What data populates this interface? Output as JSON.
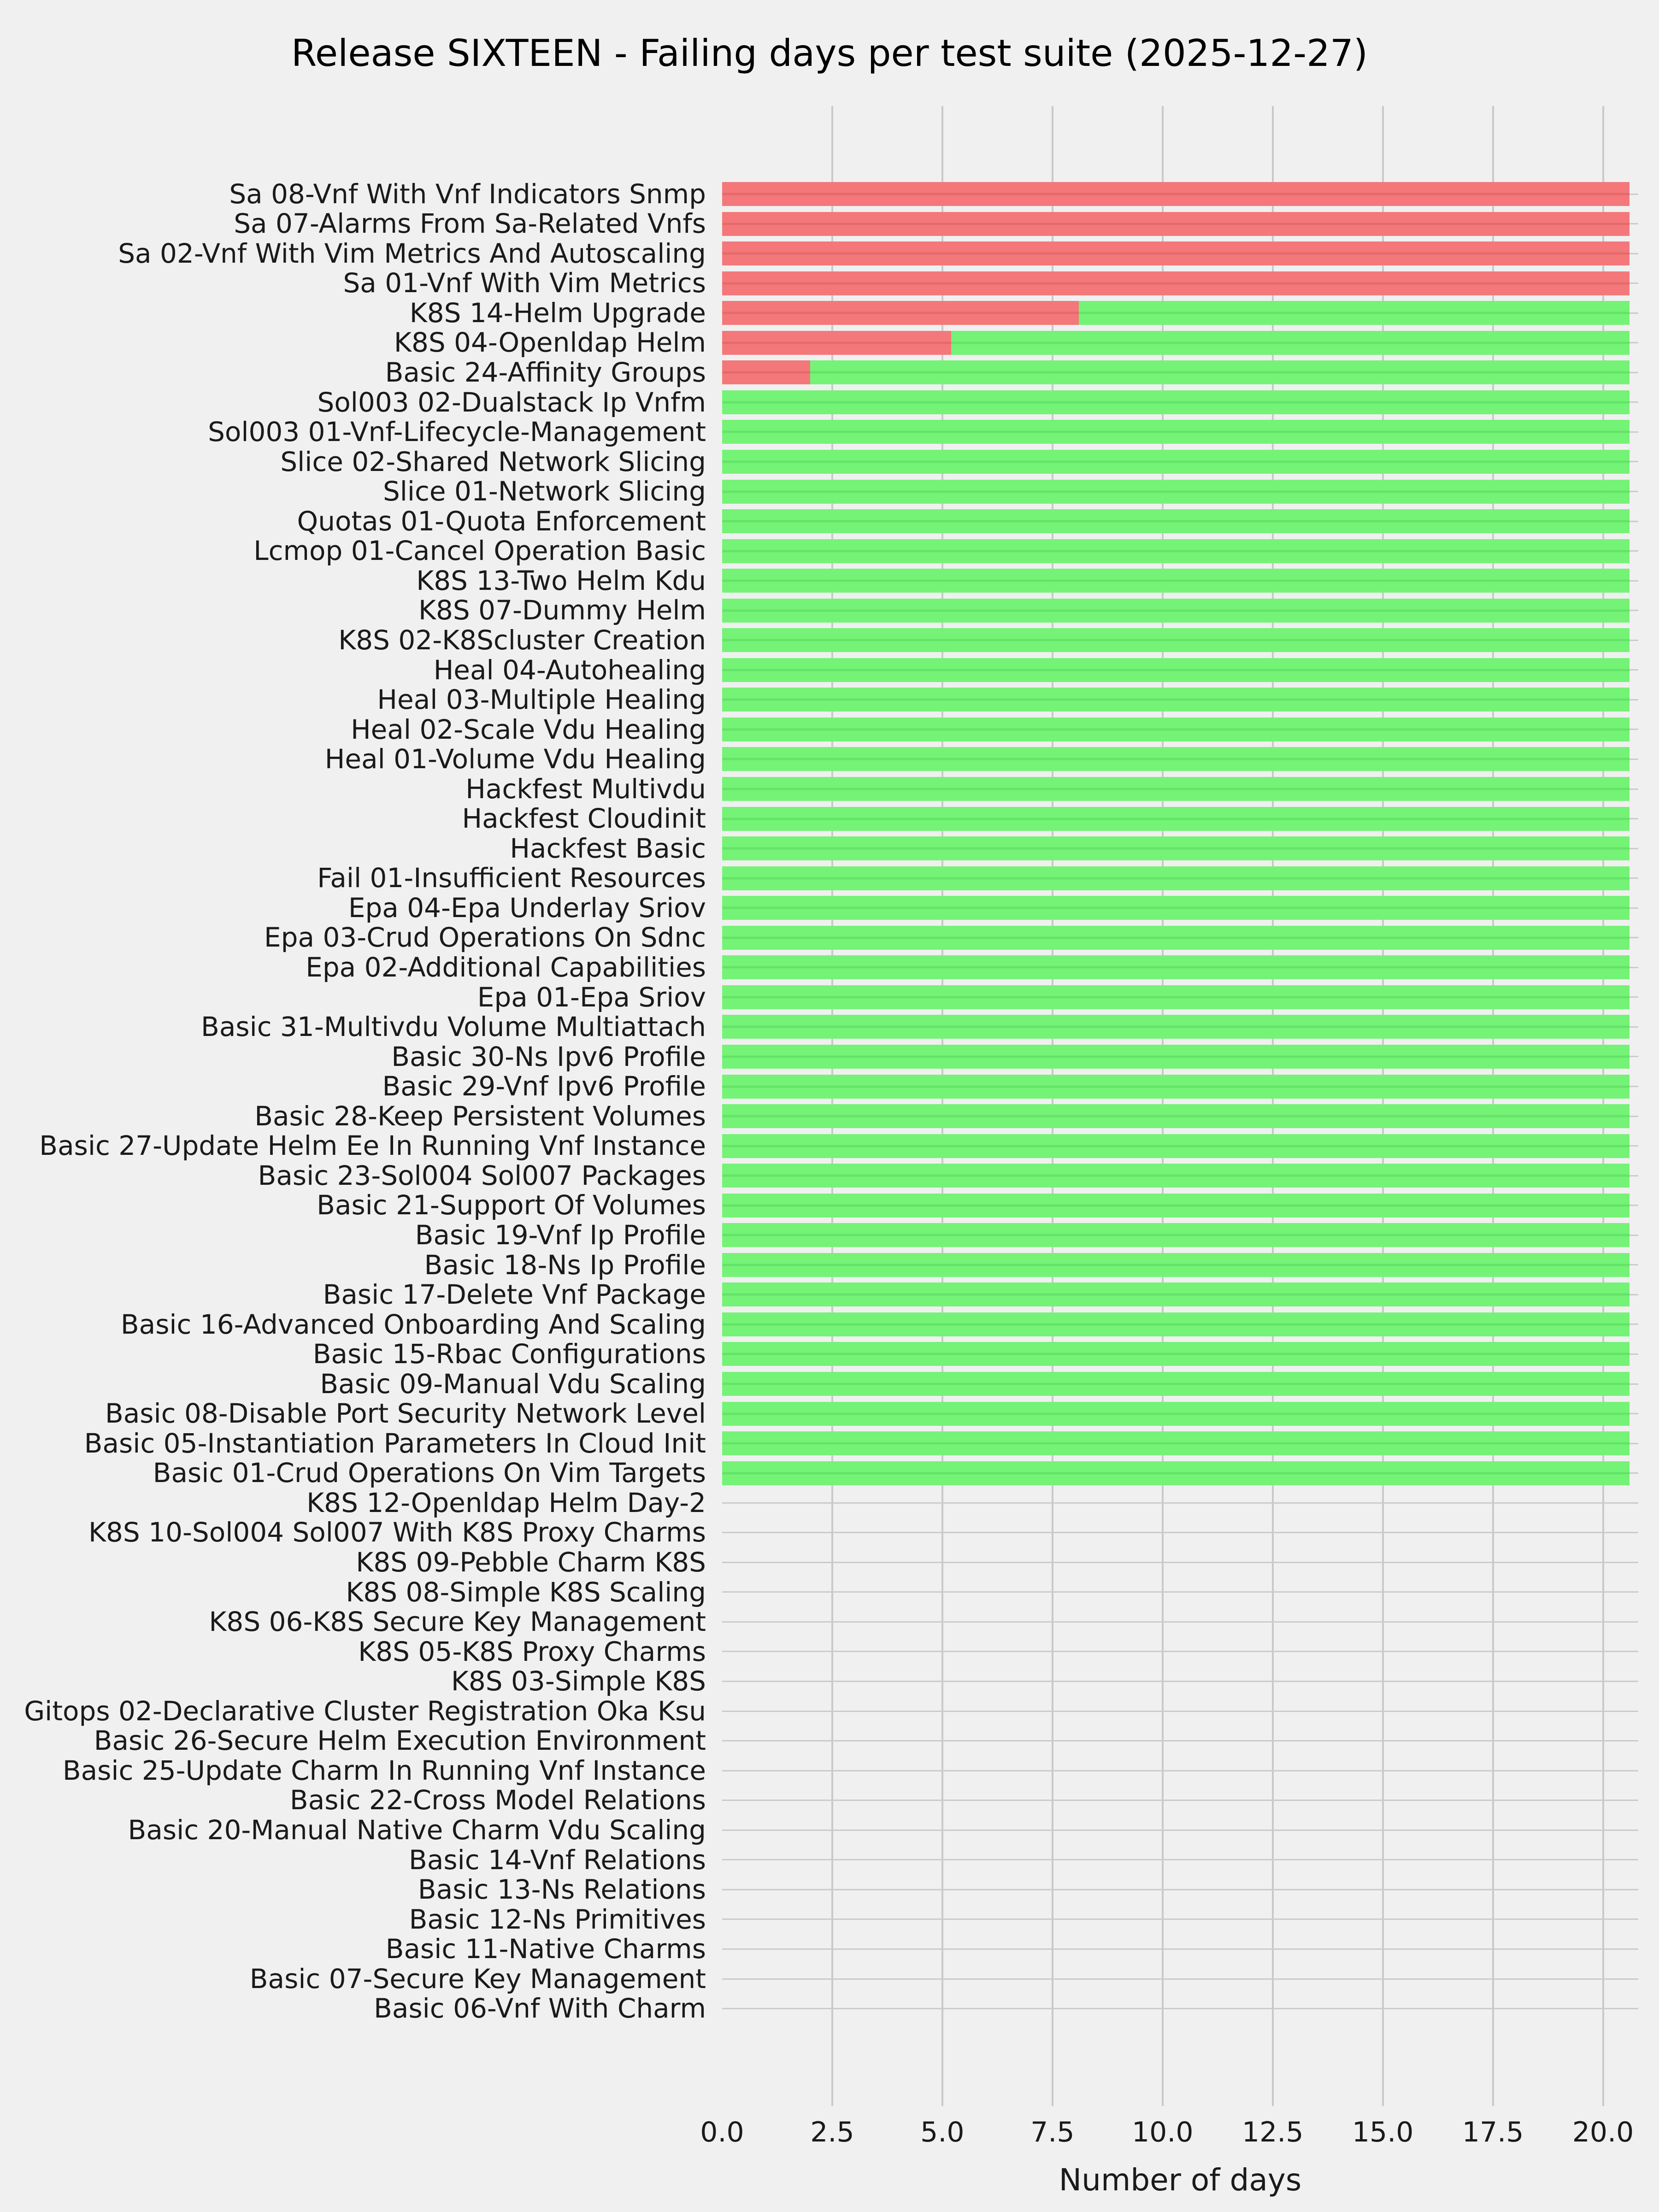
{
  "title": "Release SIXTEEN - Failing days per test suite (2025-12-27)",
  "colors": {
    "failing": "#f4787a",
    "failing_edge": "#e46a6c",
    "passing": "#74f377",
    "passing_edge": "#63e468",
    "background": "#f0f0f0",
    "gridline": "#c9c9c9",
    "text": "#1a1a1a"
  },
  "chart_data": {
    "type": "bar",
    "orientation": "horizontal",
    "stacked": true,
    "title": "Release SIXTEEN - Failing days per test suite (2025-12-27)",
    "xlabel": "Number of days",
    "ylabel": "",
    "xlim": [
      0,
      20.8
    ],
    "x_tick_labels": [
      "0.0",
      "2.5",
      "5.0",
      "7.5",
      "10.0",
      "12.5",
      "15.0",
      "17.5",
      "20.0"
    ],
    "x_tick_values": [
      0,
      2.5,
      5,
      7.5,
      10,
      12.5,
      15,
      17.5,
      20
    ],
    "grid": "on",
    "legend": "none",
    "categories": [
      "Sa 08-Vnf With Vnf Indicators Snmp",
      "Sa 07-Alarms From Sa-Related Vnfs",
      "Sa 02-Vnf With Vim Metrics And Autoscaling",
      "Sa 01-Vnf With Vim Metrics",
      "K8S 14-Helm Upgrade",
      "K8S 04-Openldap Helm",
      "Basic 24-Affinity Groups",
      "Sol003 02-Dualstack Ip Vnfm",
      "Sol003 01-Vnf-Lifecycle-Management",
      "Slice 02-Shared Network Slicing",
      "Slice 01-Network Slicing",
      "Quotas 01-Quota Enforcement",
      "Lcmop 01-Cancel Operation Basic",
      "K8S 13-Two Helm Kdu",
      "K8S 07-Dummy Helm",
      "K8S 02-K8Scluster Creation",
      "Heal 04-Autohealing",
      "Heal 03-Multiple Healing",
      "Heal 02-Scale Vdu Healing",
      "Heal 01-Volume Vdu Healing",
      "Hackfest Multivdu",
      "Hackfest Cloudinit",
      "Hackfest Basic",
      "Fail 01-Insufficient Resources",
      "Epa 04-Epa Underlay Sriov",
      "Epa 03-Crud Operations On Sdnc",
      "Epa 02-Additional Capabilities",
      "Epa 01-Epa Sriov",
      "Basic 31-Multivdu Volume Multiattach",
      "Basic 30-Ns Ipv6 Profile",
      "Basic 29-Vnf Ipv6 Profile",
      "Basic 28-Keep Persistent Volumes",
      "Basic 27-Update Helm Ee In Running Vnf Instance",
      "Basic 23-Sol004 Sol007 Packages",
      "Basic 21-Support Of Volumes",
      "Basic 19-Vnf Ip Profile",
      "Basic 18-Ns Ip Profile",
      "Basic 17-Delete Vnf Package",
      "Basic 16-Advanced Onboarding And Scaling",
      "Basic 15-Rbac Configurations",
      "Basic 09-Manual Vdu Scaling",
      "Basic 08-Disable Port Security Network Level",
      "Basic 05-Instantiation Parameters In Cloud Init",
      "Basic 01-Crud Operations On Vim Targets",
      "K8S 12-Openldap Helm Day-2",
      "K8S 10-Sol004 Sol007 With K8S Proxy Charms",
      "K8S 09-Pebble Charm K8S",
      "K8S 08-Simple K8S Scaling",
      "K8S 06-K8S Secure Key Management",
      "K8S 05-K8S Proxy Charms",
      "K8S 03-Simple K8S",
      "Gitops 02-Declarative Cluster Registration Oka Ksu",
      "Basic 26-Secure Helm Execution Environment",
      "Basic 25-Update Charm In Running Vnf Instance",
      "Basic 22-Cross Model Relations",
      "Basic 20-Manual Native Charm Vdu Scaling",
      "Basic 14-Vnf Relations",
      "Basic 13-Ns Relations",
      "Basic 12-Ns Primitives",
      "Basic 11-Native Charms",
      "Basic 07-Secure Key Management",
      "Basic 06-Vnf With Charm"
    ],
    "series": [
      {
        "name": "failing_days",
        "color": "#f4787a",
        "values": [
          20.6,
          20.6,
          20.6,
          20.6,
          8.1,
          5.2,
          2.0,
          0,
          0,
          0,
          0,
          0,
          0,
          0,
          0,
          0,
          0,
          0,
          0,
          0,
          0,
          0,
          0,
          0,
          0,
          0,
          0,
          0,
          0,
          0,
          0,
          0,
          0,
          0,
          0,
          0,
          0,
          0,
          0,
          0,
          0,
          0,
          0,
          0,
          0,
          0,
          0,
          0,
          0,
          0,
          0,
          0,
          0,
          0,
          0,
          0,
          0,
          0,
          0,
          0,
          0,
          0
        ]
      },
      {
        "name": "passing_days",
        "color": "#74f377",
        "values": [
          0,
          0,
          0,
          0,
          12.5,
          15.4,
          18.6,
          20.6,
          20.6,
          20.6,
          20.6,
          20.6,
          20.6,
          20.6,
          20.6,
          20.6,
          20.6,
          20.6,
          20.6,
          20.6,
          20.6,
          20.6,
          20.6,
          20.6,
          20.6,
          20.6,
          20.6,
          20.6,
          20.6,
          20.6,
          20.6,
          20.6,
          20.6,
          20.6,
          20.6,
          20.6,
          20.6,
          20.6,
          20.6,
          20.6,
          20.6,
          20.6,
          20.6,
          20.6,
          0,
          0,
          0,
          0,
          0,
          0,
          0,
          0,
          0,
          0,
          0,
          0,
          0,
          0,
          0,
          0,
          0,
          0
        ]
      }
    ]
  }
}
